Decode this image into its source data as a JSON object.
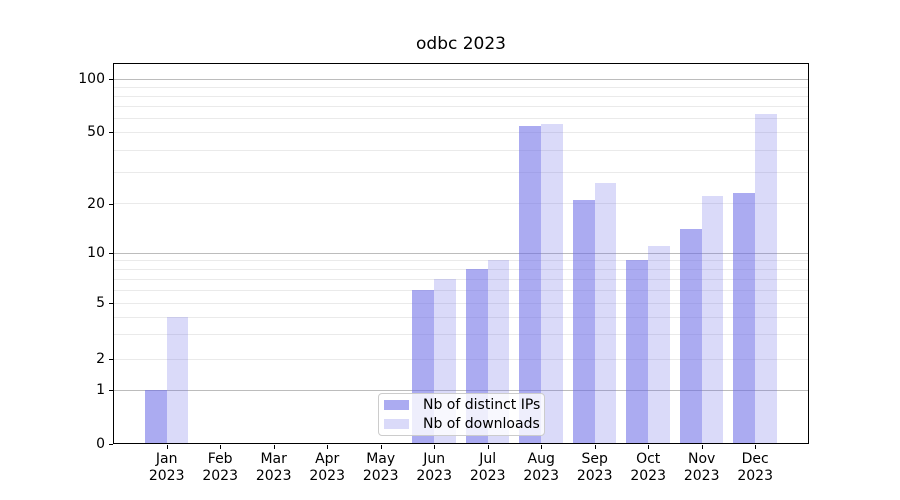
{
  "chart": {
    "title": "odbc 2023"
  },
  "chart_data": {
    "type": "bar",
    "title": "odbc 2023",
    "categories": [
      "Jan 2023",
      "Feb 2023",
      "Mar 2023",
      "Apr 2023",
      "May 2023",
      "Jun 2023",
      "Jul 2023",
      "Aug 2023",
      "Sep 2023",
      "Oct 2023",
      "Nov 2023",
      "Dec 2023"
    ],
    "x_tick_months": [
      "Jan",
      "Feb",
      "Mar",
      "Apr",
      "May",
      "Jun",
      "Jul",
      "Aug",
      "Sep",
      "Oct",
      "Nov",
      "Dec"
    ],
    "x_tick_year": "2023",
    "series": [
      {
        "name": "Nb of distinct IPs",
        "values": [
          1,
          0,
          0,
          0,
          0,
          6,
          8,
          54,
          21,
          9,
          14,
          23
        ]
      },
      {
        "name": "Nb of downloads",
        "values": [
          4,
          0,
          0,
          0,
          0,
          7,
          9,
          56,
          26,
          11,
          22,
          63
        ]
      }
    ],
    "yscale": "symlog-like",
    "ylim": [
      0,
      124
    ],
    "y_ticks": [
      0,
      1,
      2,
      5,
      10,
      20,
      50,
      100
    ],
    "gridline_values": [
      1,
      2,
      3,
      4,
      5,
      6,
      7,
      8,
      9,
      10,
      20,
      30,
      40,
      50,
      60,
      70,
      80,
      90,
      100
    ],
    "major_gridline_values": [
      1,
      10,
      100
    ],
    "legend_position": "lower center",
    "grid": true
  },
  "colors": {
    "series": [
      "rgba(102,102,230,0.55)",
      "rgba(102,102,230,0.24)"
    ],
    "series_over_white": [
      "#abaaf3",
      "#dbdbfa"
    ],
    "gridline_major": "#bcbcbc",
    "gridline_minor": "#eaeaea",
    "axis": "#000000",
    "legend_border": "#cccccc",
    "background": "#ffffff"
  }
}
